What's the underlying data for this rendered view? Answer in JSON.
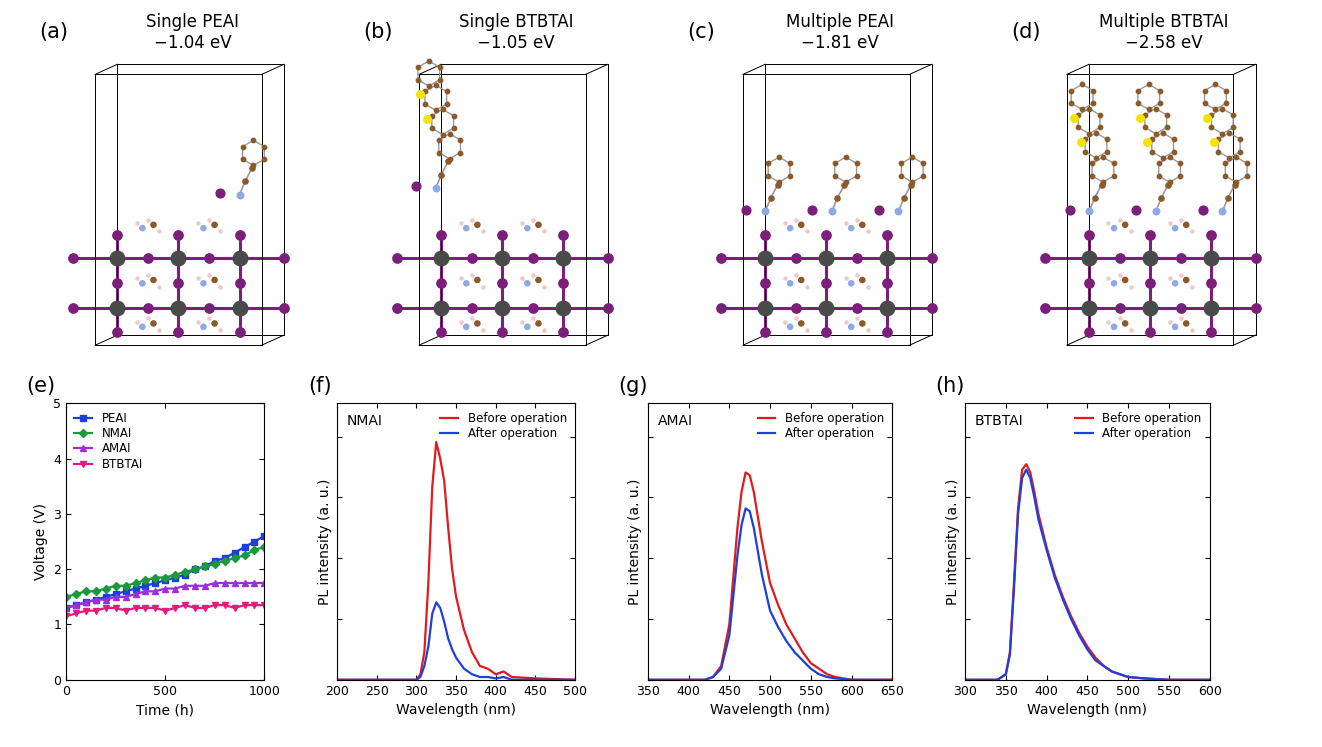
{
  "structures": [
    {
      "panel_label": "(a)",
      "title": "Single PEAI",
      "energy": "−1.04 eV"
    },
    {
      "panel_label": "(b)",
      "title": "Single BTBTAI",
      "energy": "−1.05 eV"
    },
    {
      "panel_label": "(c)",
      "title": "Multiple PEAI",
      "energy": "−1.81 eV"
    },
    {
      "panel_label": "(d)",
      "title": "Multiple BTBTAI",
      "energy": "−2.58 eV"
    }
  ],
  "chart_data": [
    {
      "type": "line",
      "panel_label": "(e)",
      "x_label": "Time (h)",
      "y_label": "Voltage (V)",
      "x": [
        0,
        50,
        100,
        150,
        200,
        250,
        300,
        350,
        400,
        450,
        500,
        550,
        600,
        650,
        700,
        750,
        800,
        850,
        900,
        950,
        1000
      ],
      "xlim": [
        0,
        1000
      ],
      "xticks": [
        0,
        500,
        1000
      ],
      "ylim": [
        0,
        5
      ],
      "yticks": [
        0,
        1,
        2,
        3,
        4,
        5
      ],
      "legend": "upper left",
      "series": [
        {
          "name": "PEAI",
          "color": "#1f3fdc",
          "marker": "square",
          "values": [
            1.3,
            1.35,
            1.4,
            1.45,
            1.5,
            1.55,
            1.6,
            1.65,
            1.7,
            1.75,
            1.8,
            1.85,
            1.9,
            2.0,
            2.05,
            2.15,
            2.2,
            2.3,
            2.4,
            2.5,
            2.6
          ]
        },
        {
          "name": "NMAI",
          "color": "#1a9a3a",
          "marker": "diamond",
          "values": [
            1.5,
            1.55,
            1.6,
            1.6,
            1.65,
            1.7,
            1.7,
            1.75,
            1.8,
            1.85,
            1.85,
            1.9,
            1.95,
            2.0,
            2.05,
            2.1,
            2.15,
            2.2,
            2.25,
            2.35,
            2.4
          ]
        },
        {
          "name": "AMAI",
          "color": "#9b30d9",
          "marker": "triangle_up",
          "values": [
            1.3,
            1.35,
            1.4,
            1.45,
            1.45,
            1.5,
            1.5,
            1.55,
            1.6,
            1.6,
            1.65,
            1.65,
            1.7,
            1.7,
            1.7,
            1.75,
            1.75,
            1.75,
            1.75,
            1.75,
            1.75
          ]
        },
        {
          "name": "BTBTAI",
          "color": "#e6197d",
          "marker": "triangle_down",
          "values": [
            1.15,
            1.2,
            1.25,
            1.25,
            1.3,
            1.3,
            1.25,
            1.3,
            1.3,
            1.3,
            1.25,
            1.3,
            1.35,
            1.3,
            1.3,
            1.35,
            1.35,
            1.3,
            1.35,
            1.35,
            1.35
          ]
        }
      ]
    },
    {
      "type": "line",
      "panel_label": "(f)",
      "title": "NMAI",
      "x_label": "Wavelength (nm)",
      "y_label": "PL intensity (a. u.)",
      "x": [
        200,
        300,
        305,
        310,
        315,
        320,
        325,
        330,
        335,
        340,
        345,
        350,
        360,
        370,
        380,
        390,
        400,
        410,
        420,
        450,
        500
      ],
      "xlim": [
        200,
        500
      ],
      "xticks": [
        200,
        250,
        300,
        350,
        400,
        450,
        500
      ],
      "ylim": [
        0,
        1
      ],
      "yticks": [
        0,
        0.22,
        0.44,
        0.66,
        0.88
      ],
      "tick_labels": "x",
      "legend": "upper right",
      "series": [
        {
          "name": "Before operation",
          "color": "#e31a1c",
          "values": [
            0,
            0,
            0.02,
            0.1,
            0.35,
            0.7,
            0.86,
            0.8,
            0.72,
            0.55,
            0.4,
            0.3,
            0.18,
            0.1,
            0.05,
            0.04,
            0.02,
            0.03,
            0.01,
            0.005,
            0
          ]
        },
        {
          "name": "After operation",
          "color": "#1f3fdc",
          "values": [
            0,
            0,
            0.01,
            0.05,
            0.12,
            0.24,
            0.28,
            0.26,
            0.21,
            0.15,
            0.11,
            0.08,
            0.04,
            0.02,
            0.01,
            0.01,
            0.005,
            0.01,
            0,
            0,
            0
          ]
        }
      ]
    },
    {
      "type": "line",
      "panel_label": "(g)",
      "title": "AMAI",
      "x_label": "Wavelength (nm)",
      "y_label": "PL intensity (a. u.)",
      "x": [
        350,
        420,
        430,
        440,
        450,
        460,
        465,
        470,
        475,
        480,
        490,
        500,
        510,
        520,
        530,
        540,
        550,
        560,
        570,
        580,
        600,
        650
      ],
      "xlim": [
        350,
        650
      ],
      "xticks": [
        350,
        400,
        450,
        500,
        550,
        600,
        650
      ],
      "ylim": [
        0,
        1
      ],
      "yticks": [
        0,
        0.22,
        0.44,
        0.66,
        0.88
      ],
      "tick_labels": "x",
      "legend": "upper right",
      "series": [
        {
          "name": "Before operation",
          "color": "#e31a1c",
          "values": [
            0,
            0,
            0.01,
            0.05,
            0.2,
            0.55,
            0.68,
            0.75,
            0.74,
            0.68,
            0.5,
            0.35,
            0.27,
            0.2,
            0.15,
            0.1,
            0.06,
            0.04,
            0.02,
            0.01,
            0,
            0
          ]
        },
        {
          "name": "After operation",
          "color": "#1f3fdc",
          "values": [
            0,
            0,
            0.01,
            0.04,
            0.16,
            0.45,
            0.56,
            0.62,
            0.61,
            0.55,
            0.38,
            0.25,
            0.19,
            0.14,
            0.1,
            0.07,
            0.04,
            0.02,
            0.01,
            0.005,
            0,
            0
          ]
        }
      ]
    },
    {
      "type": "line",
      "panel_label": "(h)",
      "title": "BTBTAI",
      "x_label": "Wavelength (nm)",
      "y_label": "PL intensity (a. u.)",
      "x": [
        300,
        340,
        350,
        355,
        360,
        365,
        370,
        375,
        380,
        385,
        390,
        400,
        410,
        420,
        430,
        440,
        450,
        460,
        470,
        480,
        500,
        520,
        550,
        600
      ],
      "xlim": [
        300,
        600
      ],
      "xticks": [
        300,
        350,
        400,
        450,
        500,
        550,
        600
      ],
      "ylim": [
        0,
        1
      ],
      "yticks": [
        0,
        0.22,
        0.44,
        0.66,
        0.88
      ],
      "tick_labels": "x",
      "legend": "upper right",
      "series": [
        {
          "name": "Before operation",
          "color": "#e31a1c",
          "values": [
            0,
            0,
            0.02,
            0.1,
            0.35,
            0.62,
            0.76,
            0.78,
            0.75,
            0.68,
            0.6,
            0.48,
            0.38,
            0.3,
            0.23,
            0.17,
            0.12,
            0.08,
            0.05,
            0.03,
            0.01,
            0.005,
            0,
            0
          ]
        },
        {
          "name": "After operation",
          "color": "#1f3fdc",
          "values": [
            0,
            0,
            0.02,
            0.09,
            0.33,
            0.6,
            0.73,
            0.76,
            0.73,
            0.66,
            0.58,
            0.47,
            0.37,
            0.29,
            0.22,
            0.16,
            0.11,
            0.07,
            0.05,
            0.03,
            0.01,
            0.005,
            0,
            0
          ]
        }
      ]
    }
  ]
}
